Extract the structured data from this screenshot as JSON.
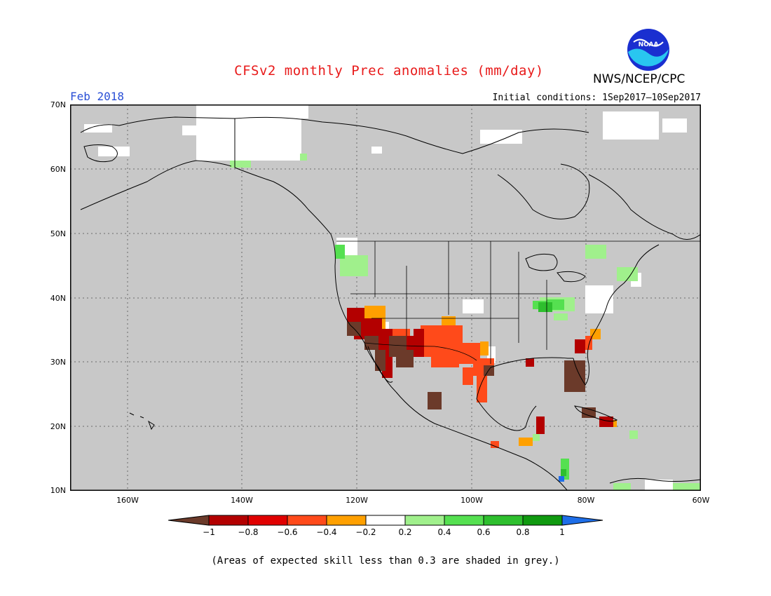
{
  "title": "CFSv2 monthly Prec anomalies (mm/day)",
  "agency": "NWS/NCEP/CPC",
  "logo_text": "NOAA",
  "period": "Feb 2018",
  "initial_conditions": "Initial conditions: 1Sep2017–10Sep2017",
  "footnote": "(Areas of expected skill less than 0.3 are shaded in grey.)",
  "lat_labels": [
    "70N",
    "60N",
    "50N",
    "40N",
    "30N",
    "20N",
    "10N"
  ],
  "lon_labels": [
    "160W",
    "140W",
    "120W",
    "100W",
    "80W",
    "60W"
  ],
  "colorbar": {
    "labels": [
      "−1",
      "−0.8",
      "−0.6",
      "−0.4",
      "−0.2",
      "0.2",
      "0.4",
      "0.6",
      "0.8",
      "1"
    ],
    "colors": [
      "#6b3a2a",
      "#b30000",
      "#e00000",
      "#ff4a1a",
      "#ffa000",
      "#ffffff",
      "#a0f08c",
      "#55e050",
      "#2ebf2e",
      "#109a10",
      "#1e6ee8"
    ]
  },
  "colors": {
    "land_ocean_grey": "#c8c8c8",
    "title_red": "#e81a1a",
    "period_blue": "#2a4fd6"
  }
}
